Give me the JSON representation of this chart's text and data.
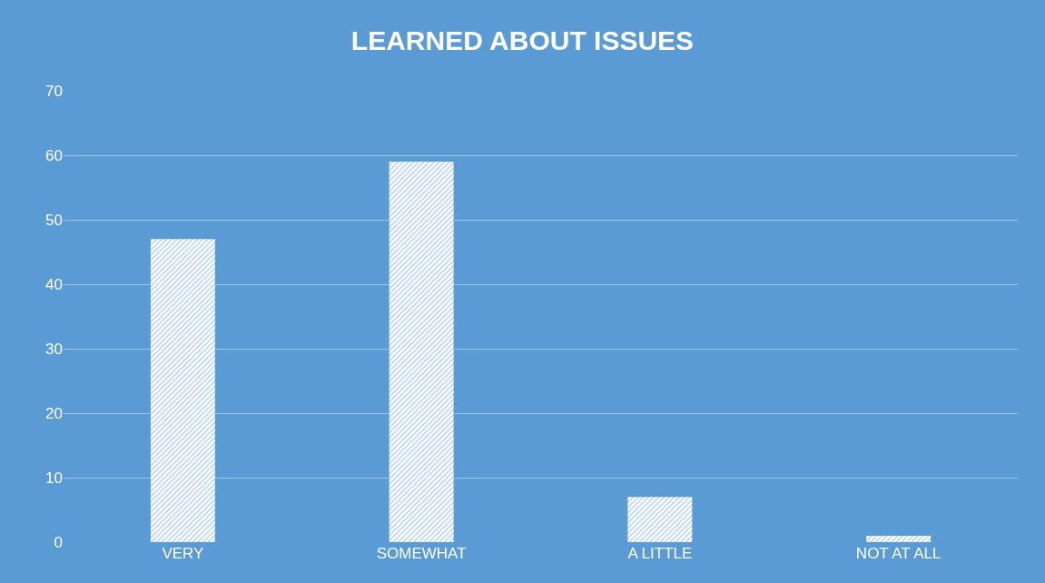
{
  "chart_data": {
    "type": "bar",
    "title": "LEARNED ABOUT ISSUES",
    "categories": [
      "VERY",
      "SOMEWHAT",
      "A LITTLE",
      "NOT AT ALL"
    ],
    "values": [
      47,
      59,
      7,
      1
    ],
    "color": "#ffffff",
    "ylim": [
      0,
      70
    ],
    "yticks": [
      0,
      10,
      20,
      30,
      40,
      50,
      60,
      70
    ],
    "grid": "y"
  }
}
